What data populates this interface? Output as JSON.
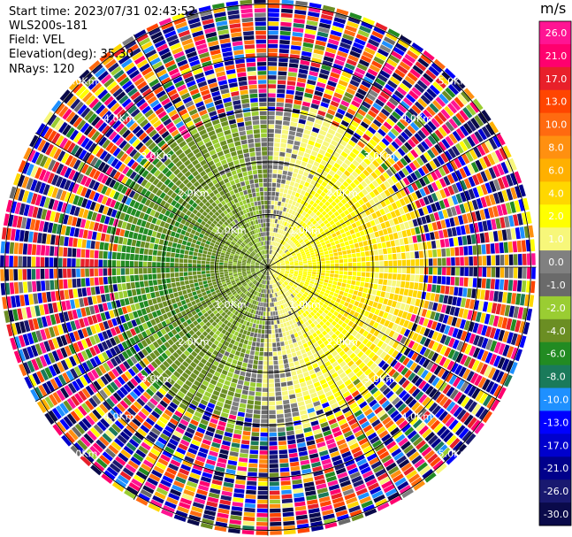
{
  "header": {
    "start_time": "Start time: 2023/07/31 02:43:52",
    "instrument": "WLS200s-181",
    "field": "Field: VEL",
    "elevation": "Elevation(deg): 35.30",
    "nrays": "NRays: 120"
  },
  "colorbar": {
    "unit": "m/s",
    "levels": [
      {
        "label": "26.0",
        "color": "#ff1493"
      },
      {
        "label": "21.0",
        "color": "#ff006e"
      },
      {
        "label": "17.0",
        "color": "#e8202a"
      },
      {
        "label": "13.0",
        "color": "#ff4500"
      },
      {
        "label": "10.0",
        "color": "#ff6a10"
      },
      {
        "label": "8.0",
        "color": "#ff9010"
      },
      {
        "label": "6.0",
        "color": "#ffb000"
      },
      {
        "label": "4.0",
        "color": "#ffd700"
      },
      {
        "label": "2.0",
        "color": "#ffff00"
      },
      {
        "label": "1.0",
        "color": "#f7f77a"
      },
      {
        "label": "0.0",
        "color": "#808080"
      },
      {
        "label": "-1.0",
        "color": "#6a6a6a"
      },
      {
        "label": "-2.0",
        "color": "#9acd32"
      },
      {
        "label": "-4.0",
        "color": "#6b8e23"
      },
      {
        "label": "-6.0",
        "color": "#228b22"
      },
      {
        "label": "-8.0",
        "color": "#1a7a5a"
      },
      {
        "label": "-10.0",
        "color": "#1e90ff"
      },
      {
        "label": "-13.0",
        "color": "#0000ff"
      },
      {
        "label": "-17.0",
        "color": "#0000cd"
      },
      {
        "label": "-21.0",
        "color": "#00008b"
      },
      {
        "label": "-26.0",
        "color": "#191970"
      },
      {
        "label": "-30.0",
        "color": "#0a0a4a"
      }
    ]
  },
  "chart_data": {
    "type": "heatmap",
    "subtype": "radar-ppi",
    "field": "VEL",
    "units": "m/s",
    "nrays": 120,
    "color_range": [
      -30.0,
      30.0
    ],
    "range_ring_labels": [
      "1.0Km",
      "2.0Km",
      "3.0Km",
      "4.0Km",
      "5.0Km"
    ],
    "ring_ranges_km": [
      1,
      2,
      3,
      4,
      5
    ],
    "max_range_km": 5.1,
    "spokes_deg": [
      0,
      30,
      60,
      90,
      120,
      150,
      180,
      210,
      240,
      270,
      300,
      330
    ],
    "label_bearings_deg": [
      45,
      135,
      225,
      315
    ],
    "pattern": {
      "east_half": "positive 1 to 6 m/s within 2 km, wrapping noise beyond 3 km",
      "west_half": "negative -1 to -6 m/s within 3 km, wrapping noise beyond 3 km",
      "noise_onset_km": 3.0
    }
  }
}
